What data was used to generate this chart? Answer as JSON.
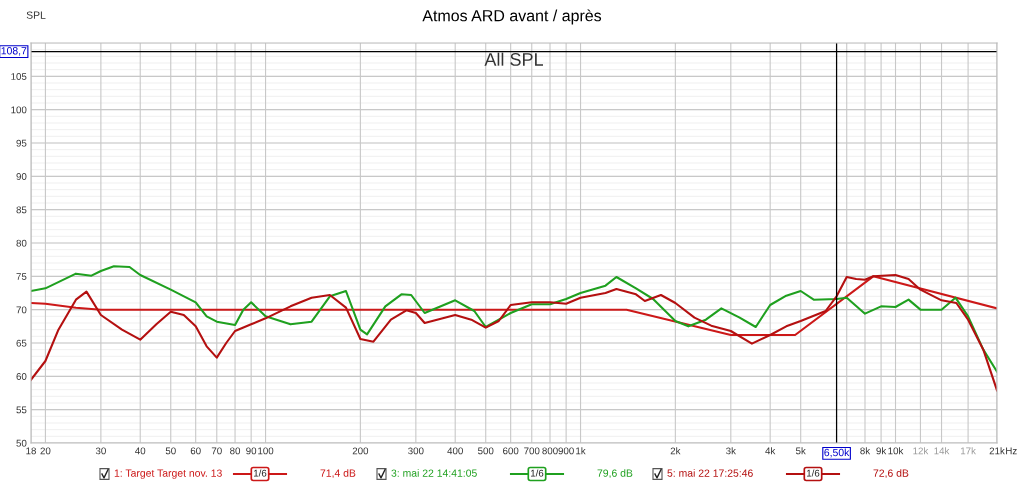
{
  "chart_data": {
    "type": "line",
    "title": "Atmos ARD avant / après",
    "ylabel": "SPL",
    "annotations": [
      "All SPL",
      "1/6",
      "71,4 dB",
      "1/6",
      "79,6 dB",
      "1/6",
      "72,6 dB"
    ],
    "log": "x",
    "grid": true,
    "legend": "bottom",
    "marker": "none",
    "line_style": "solid",
    "xlim": [
      18,
      21000
    ],
    "ylim": [
      50,
      110
    ],
    "xticks": [
      18,
      20,
      30,
      40,
      50,
      60,
      70,
      80,
      90,
      100,
      200,
      300,
      400,
      500,
      600,
      700,
      800,
      900,
      {
        "value": 1000,
        "label": "1k"
      },
      {
        "value": 2000,
        "label": "2k"
      },
      {
        "value": 3000,
        "label": "3k"
      },
      {
        "value": 4000,
        "label": "4k"
      },
      {
        "value": 5000,
        "label": "5k"
      },
      {
        "value": 7000,
        "label": null
      },
      {
        "value": 8000,
        "label": "8k"
      },
      {
        "value": 9000,
        "label": "9k"
      },
      {
        "value": 10000,
        "label": "10k"
      },
      {
        "value": 12000,
        "label": "12k"
      },
      {
        "value": 14000,
        "label": "14k"
      },
      {
        "value": 17000,
        "label": "17k"
      },
      {
        "value": 21000,
        "label": "21k"
      }
    ],
    "xlabel": "Hz",
    "yticks": [
      50,
      55,
      60,
      65,
      70,
      75,
      80,
      85,
      90,
      95,
      100,
      105
    ],
    "ref_lines": [
      {
        "axis": "y",
        "value": 108.7,
        "label": "108,7",
        "color": "#000000"
      },
      {
        "axis": "x",
        "value": 6500,
        "label": "6,50k",
        "color": "#000000"
      }
    ],
    "series": [
      {
        "name": "1: Target Target nov. 13",
        "color": "#cc1818",
        "x": [
          18,
          20,
          25,
          30,
          1400,
          3000,
          4800,
          8500,
          21000
        ],
        "values": [
          71,
          70.9,
          70.3,
          70,
          70,
          66.2,
          66.2,
          75,
          70.2
        ]
      },
      {
        "name": "3: mai 22 14:41:05",
        "color": "#1fa01f",
        "x": [
          18,
          20,
          25,
          28,
          30,
          33,
          37,
          40,
          50,
          60,
          65,
          70,
          80,
          85,
          90,
          100,
          120,
          140,
          160,
          180,
          200,
          210,
          240,
          270,
          290,
          320,
          400,
          460,
          500,
          600,
          700,
          800,
          900,
          1000,
          1200,
          1300,
          1500,
          1700,
          2000,
          2200,
          2500,
          2800,
          3200,
          3600,
          4000,
          4500,
          5000,
          5500,
          6500,
          7000,
          8000,
          9000,
          10000,
          11000,
          12000,
          14000,
          15500,
          17000,
          19000,
          21000
        ],
        "values": [
          72.8,
          73.2,
          75.4,
          75.1,
          75.8,
          76.5,
          76.4,
          75.2,
          73,
          71.1,
          69,
          68.2,
          67.7,
          70,
          71.1,
          69,
          67.8,
          68.2,
          72,
          72.8,
          67,
          66.3,
          70.5,
          72.3,
          72.2,
          69.5,
          71.4,
          69.8,
          67.4,
          69.5,
          70.8,
          70.8,
          71.6,
          72.5,
          73.6,
          74.9,
          73.2,
          71.6,
          68.3,
          67.5,
          68.5,
          70.2,
          68.8,
          67.4,
          70.7,
          72.1,
          72.8,
          71.5,
          71.6,
          71.8,
          69.4,
          70.5,
          70.4,
          71.5,
          70,
          70,
          71.8,
          69,
          64,
          60.7
        ]
      },
      {
        "name": "5: mai 22 17:25:46",
        "color": "#b41010",
        "x": [
          18,
          20,
          22,
          25,
          27,
          30,
          35,
          40,
          45,
          50,
          55,
          60,
          65,
          70,
          75,
          80,
          90,
          100,
          120,
          140,
          160,
          180,
          200,
          220,
          250,
          280,
          300,
          320,
          400,
          450,
          500,
          550,
          600,
          700,
          800,
          900,
          1000,
          1200,
          1300,
          1500,
          1600,
          1800,
          2000,
          2300,
          2600,
          3000,
          3500,
          4000,
          4500,
          5000,
          6000,
          6500,
          7000,
          7500,
          8000,
          8500,
          10000,
          11000,
          12000,
          14000,
          15600,
          17000,
          19000,
          21000
        ],
        "values": [
          59.5,
          62.3,
          67,
          71.5,
          72.7,
          69.2,
          67,
          65.5,
          67.8,
          69.7,
          69.2,
          67.5,
          64.5,
          62.8,
          65,
          66.8,
          67.8,
          68.7,
          70.5,
          71.8,
          72.2,
          70.3,
          65.6,
          65.2,
          68.5,
          69.9,
          69.5,
          68,
          69.2,
          68.5,
          67.3,
          68.3,
          70.7,
          71.1,
          71.1,
          70.9,
          71.8,
          72.5,
          73.1,
          72.3,
          71.3,
          72.2,
          71,
          68.8,
          67.6,
          66.8,
          64.9,
          66.2,
          67.5,
          68.3,
          69.8,
          72,
          74.9,
          74.6,
          74.5,
          75,
          75.2,
          74.6,
          73,
          71.4,
          71,
          68.5,
          64,
          57.9
        ]
      }
    ]
  }
}
